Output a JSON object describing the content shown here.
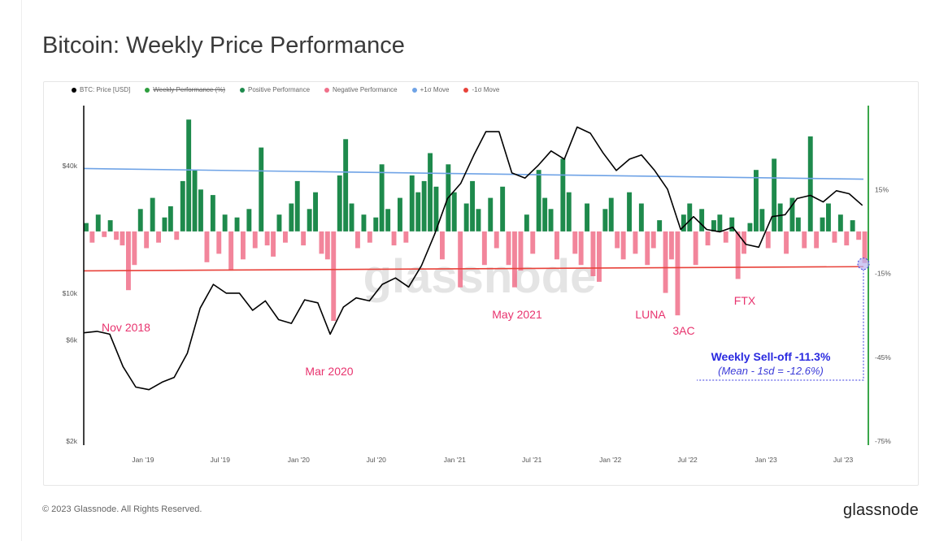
{
  "header": {
    "title": "Bitcoin: Weekly Price Performance"
  },
  "footer": {
    "copyright": "© 2023 Glassnode. All Rights Reserved.",
    "logo": "glassnode"
  },
  "watermark": "glassnode",
  "colors": {
    "price": "#000000",
    "weekly": "#2e9e3e",
    "positive": "#1e8a4c",
    "negative": "#f0708a",
    "plus_sigma": "#6fa3e6",
    "minus_sigma": "#e8423a",
    "annotation_event": "#e8336e",
    "annotation_callout": "#2a2ae0"
  },
  "chart_data": {
    "type": "bar+line",
    "legend": {
      "placement": "top-left",
      "items": [
        {
          "label": "BTC: Price [USD]",
          "color": "#000000"
        },
        {
          "label": "Weekly Performance (%)",
          "color": "#2e9e3e",
          "hidden": true
        },
        {
          "label": "Positive Performance",
          "color": "#1e8a4c"
        },
        {
          "label": "Negative Performance",
          "color": "#f0708a"
        },
        {
          "label": "+1σ Move",
          "color": "#6fa3e6"
        },
        {
          "label": "-1σ Move",
          "color": "#e8423a"
        }
      ]
    },
    "x_range": [
      "2018-08-15",
      "2023-08-29"
    ],
    "x_ticks": [
      {
        "date": "2019-01-01",
        "label": "Jan '19"
      },
      {
        "date": "2019-07-01",
        "label": "Jul '19"
      },
      {
        "date": "2020-01-01",
        "label": "Jan '20"
      },
      {
        "date": "2020-07-01",
        "label": "Jul '20"
      },
      {
        "date": "2021-01-01",
        "label": "Jan '21"
      },
      {
        "date": "2021-07-01",
        "label": "Jul '21"
      },
      {
        "date": "2022-01-01",
        "label": "Jan '22"
      },
      {
        "date": "2022-07-01",
        "label": "Jul '22"
      },
      {
        "date": "2023-01-01",
        "label": "Jan '23"
      },
      {
        "date": "2023-07-01",
        "label": "Jul '23"
      }
    ],
    "left_axis": {
      "scale": "log",
      "range": [
        2000,
        77000
      ],
      "ticks": [
        {
          "v": 2000,
          "label": "$2k"
        },
        {
          "v": 6000,
          "label": "$6k"
        },
        {
          "v": 10000,
          "label": "$10k"
        },
        {
          "v": 40000,
          "label": "$40k"
        }
      ]
    },
    "right_axis": {
      "scale": "linear",
      "range": [
        -75,
        45
      ],
      "ticks": [
        {
          "v": 15,
          "label": "15%"
        },
        {
          "v": -15,
          "label": "-15%"
        },
        {
          "v": -45,
          "label": "-45%"
        },
        {
          "v": -75,
          "label": "-75%"
        }
      ]
    },
    "price_monthly": {
      "start": "2018-08",
      "values": [
        6500,
        6600,
        6400,
        4500,
        3600,
        3500,
        3800,
        4000,
        5200,
        8500,
        11000,
        10000,
        10000,
        8300,
        9200,
        7500,
        7200,
        9300,
        9000,
        6400,
        8600,
        9500,
        9200,
        11000,
        11800,
        10700,
        13500,
        19000,
        28000,
        33000,
        45000,
        58000,
        58000,
        37000,
        35000,
        40000,
        47000,
        43000,
        61000,
        57000,
        46000,
        38000,
        43000,
        45000,
        38000,
        31000,
        20000,
        23000,
        20000,
        19500,
        20500,
        17000,
        16500,
        23000,
        23500,
        28000,
        29000,
        27000,
        30500,
        29500,
        26000
      ]
    },
    "weekly_performance_pct": {
      "interval": "biweekly",
      "values": [
        3,
        -4,
        6,
        -2,
        4,
        -3,
        -5,
        -21,
        -12,
        8,
        -6,
        12,
        -4,
        5,
        9,
        -3,
        18,
        40,
        22,
        15,
        -11,
        13,
        -8,
        6,
        -14,
        5,
        -10,
        8,
        -6,
        30,
        -5,
        -9,
        6,
        -4,
        10,
        18,
        -5,
        8,
        14,
        -8,
        -10,
        -32,
        20,
        33,
        10,
        -6,
        6,
        -4,
        5,
        24,
        8,
        -5,
        12,
        -4,
        20,
        14,
        18,
        28,
        16,
        -10,
        24,
        14,
        -20,
        10,
        18,
        8,
        -12,
        12,
        -6,
        16,
        -12,
        -20,
        -14,
        6,
        -8,
        22,
        12,
        8,
        -10,
        26,
        14,
        -8,
        -12,
        10,
        -16,
        -18,
        8,
        12,
        -6,
        -10,
        14,
        -8,
        10,
        -12,
        -6,
        4,
        -22,
        -10,
        -30,
        6,
        10,
        -12,
        8,
        -5,
        4,
        6,
        -4,
        5,
        -17,
        -8,
        3,
        22,
        8,
        -6,
        26,
        10,
        -8,
        12,
        5,
        -6,
        34,
        -6,
        5,
        10,
        -4,
        6,
        -5,
        4,
        -3,
        -11.3
      ]
    },
    "plus_sigma_pct": [
      22.5,
      18.7
    ],
    "minus_sigma_pct": [
      -14.1,
      -12.6
    ],
    "annotations": [
      {
        "label": "Nov 2018"
      },
      {
        "label": "Mar 2020"
      },
      {
        "label": "May 2021"
      },
      {
        "label": "LUNA"
      },
      {
        "label": "3AC"
      },
      {
        "label": "FTX"
      }
    ],
    "callout": {
      "title": "Weekly Sell-off -11.3%",
      "subtitle": "(Mean - 1sd = -12.6%)"
    }
  }
}
